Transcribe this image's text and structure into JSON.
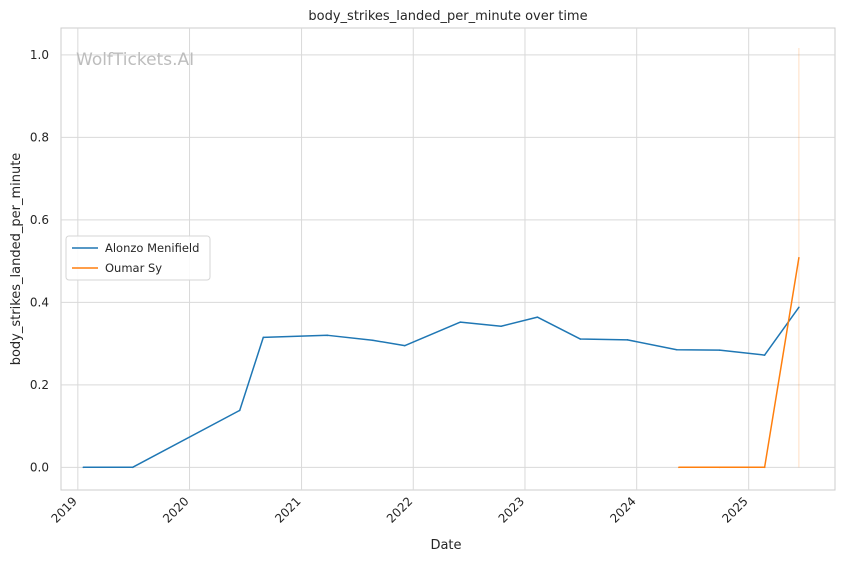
{
  "chart_data": {
    "type": "line",
    "title": "body_strikes_landed_per_minute over time",
    "xlabel": "Date",
    "ylabel": "body_strikes_landed_per_minute",
    "watermark": "WolfTickets.AI",
    "xlim": [
      "2018-11-07",
      "2025-10-10"
    ],
    "ylim": [
      -0.055,
      1.065
    ],
    "x_ticks": [
      "2019",
      "2020",
      "2021",
      "2022",
      "2023",
      "2024",
      "2025"
    ],
    "y_ticks": [
      "0.0",
      "0.2",
      "0.4",
      "0.6",
      "0.8",
      "1.0"
    ],
    "grid": true,
    "legend_position": "center-left",
    "series": [
      {
        "name": "Alonzo Menifield",
        "color": "#1f77b4",
        "points": [
          [
            "2019-01-19",
            0.0
          ],
          [
            "2019-06-29",
            0.0
          ],
          [
            "2020-06-13",
            0.138
          ],
          [
            "2020-08-29",
            0.315
          ],
          [
            "2021-03-27",
            0.32
          ],
          [
            "2021-08-21",
            0.308
          ],
          [
            "2021-12-04",
            0.295
          ],
          [
            "2022-06-04",
            0.352
          ],
          [
            "2022-10-15",
            0.342
          ],
          [
            "2023-02-11",
            0.364
          ],
          [
            "2023-07-01",
            0.311
          ],
          [
            "2023-12-02",
            0.309
          ],
          [
            "2024-05-11",
            0.285
          ],
          [
            "2024-09-28",
            0.284
          ],
          [
            "2025-02-22",
            0.272
          ],
          [
            "2025-06-14",
            0.388
          ]
        ]
      },
      {
        "name": "Oumar Sy",
        "color": "#ff7f0e",
        "points": [
          [
            "2024-05-18",
            0.0
          ],
          [
            "2024-09-28",
            0.0
          ],
          [
            "2025-02-22",
            0.0
          ],
          [
            "2025-06-14",
            0.508
          ]
        ]
      }
    ]
  }
}
